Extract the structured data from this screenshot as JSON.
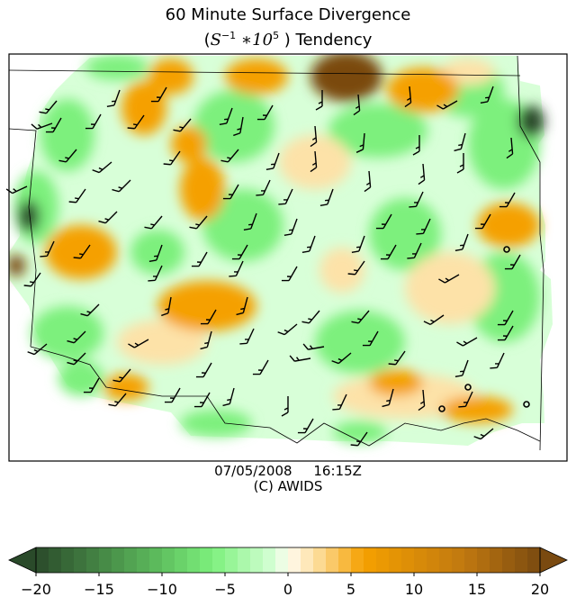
{
  "title_line1": "60 Minute Surface Divergence",
  "title_line2": {
    "open": "(",
    "base": "S",
    "exp1": "−1",
    "mult": " ∗10",
    "exp2": "5",
    "close": " ) Tendency"
  },
  "caption": {
    "date": "07/05/2008",
    "time": "16:15Z",
    "credit": "(C) AWIDS"
  },
  "colors": {
    "strong_convergence": "#2a4a2a",
    "convergence": "#7df07d",
    "weak_convergence": "#d8ffd8",
    "neutral": "#fffbf0",
    "weak_divergence": "#fde2a8",
    "divergence": "#f5a000",
    "strong_divergence": "#7a4a10"
  },
  "colorbar": {
    "min": -20,
    "max": 20,
    "ticks": [
      "−20",
      "−15",
      "−10",
      "−5",
      "0",
      "5",
      "10",
      "15",
      "20"
    ]
  }
}
